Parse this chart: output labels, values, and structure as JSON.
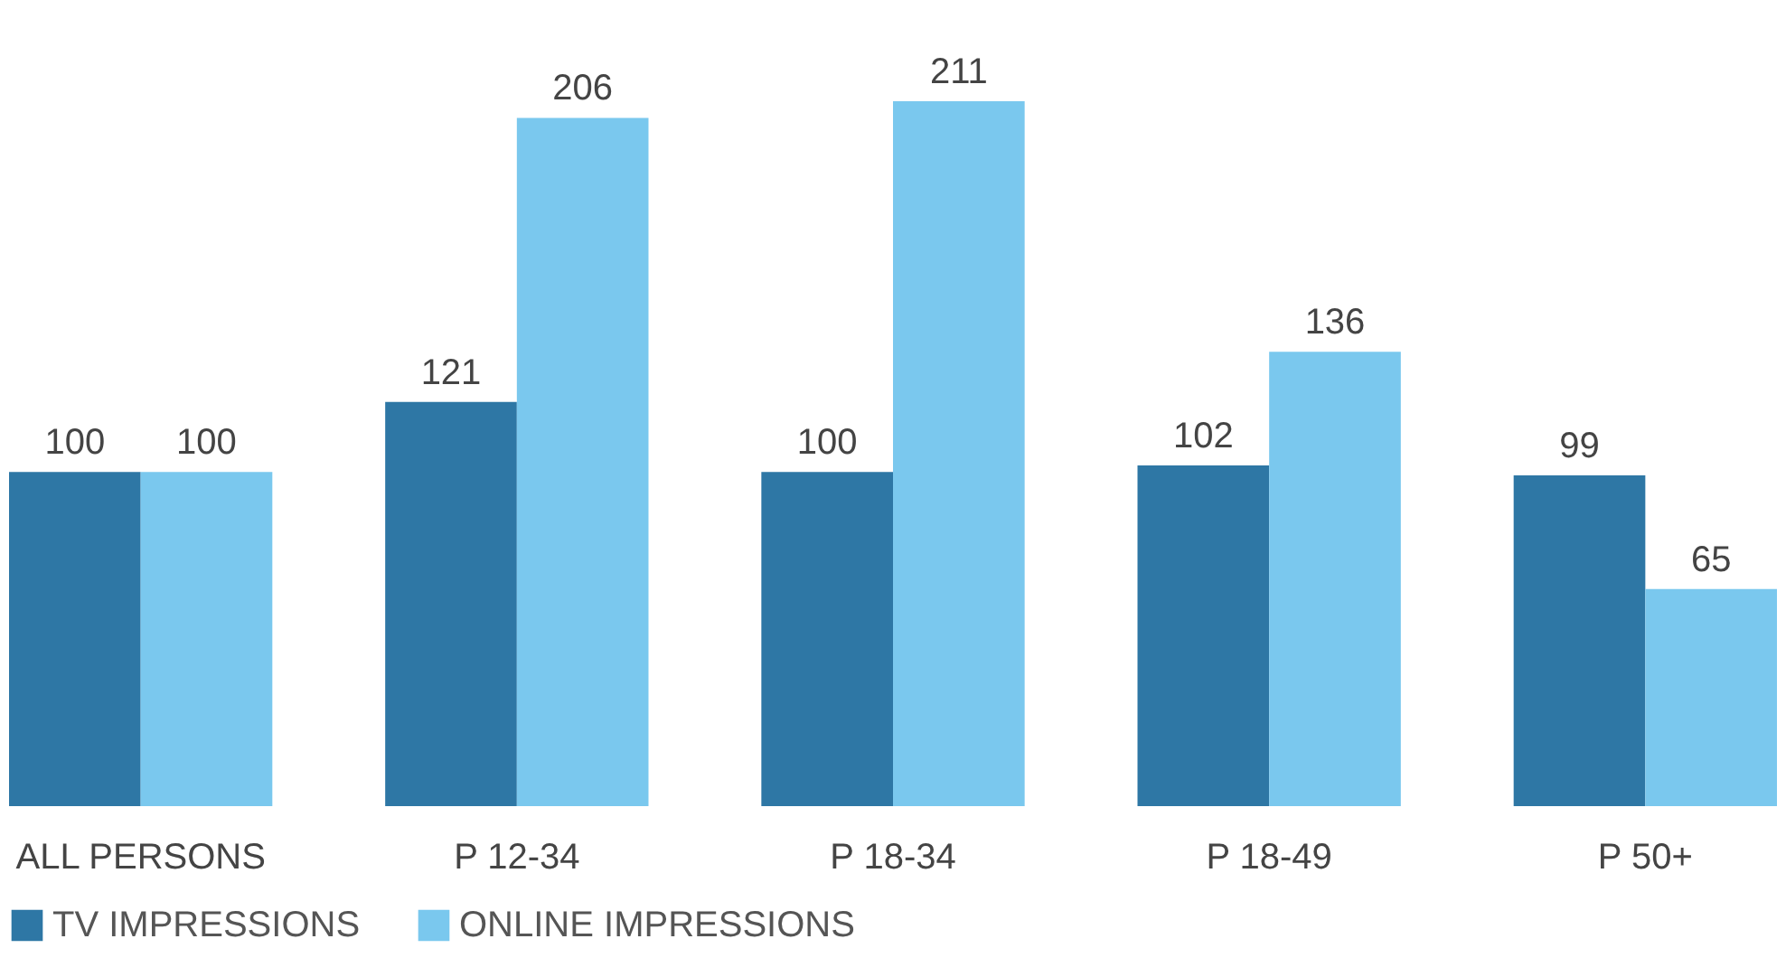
{
  "chart_data": {
    "type": "bar",
    "categories": [
      "ALL PERSONS",
      "P 12-34",
      "P 18-34",
      "P 18-49",
      "P 50+"
    ],
    "series": [
      {
        "name": "TV IMPRESSIONS",
        "color": "#2e77a5",
        "values": [
          100,
          121,
          100,
          102,
          99
        ]
      },
      {
        "name": "ONLINE IMPRESSIONS",
        "color": "#7ac8ee",
        "values": [
          100,
          206,
          211,
          136,
          65
        ]
      }
    ],
    "data_labels": true,
    "legend": "bottom",
    "grid": false
  }
}
